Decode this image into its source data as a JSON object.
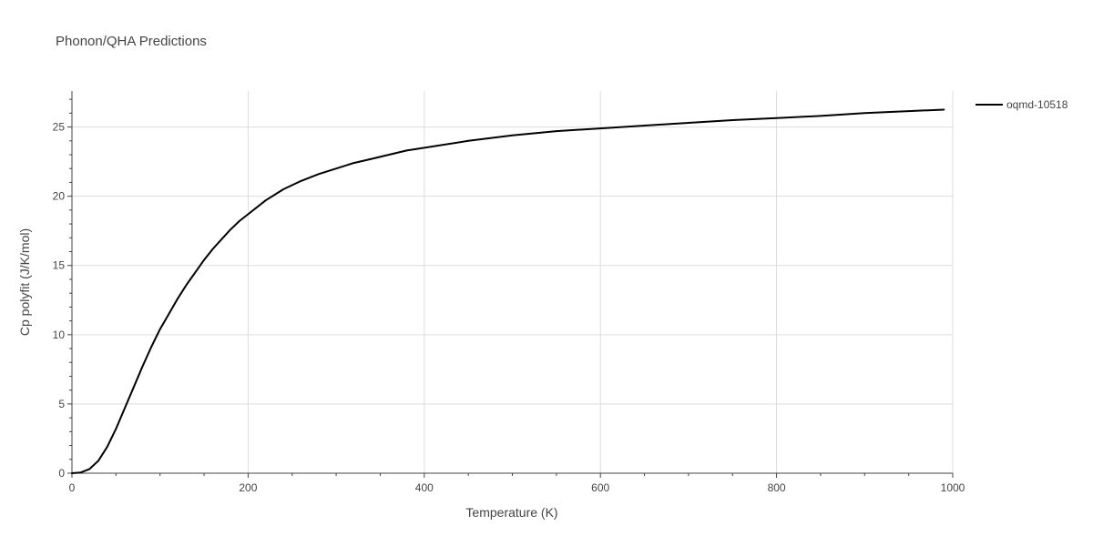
{
  "chart_data": {
    "type": "line",
    "title": "Phonon/QHA Predictions",
    "xlabel": "Temperature (K)",
    "ylabel": "Cp polyfit (J/K/mol)",
    "xlim": [
      0,
      1000
    ],
    "ylim": [
      0,
      27.6
    ],
    "xticks": [
      0,
      200,
      400,
      600,
      800,
      1000
    ],
    "yticks": [
      0,
      5,
      10,
      15,
      20,
      25
    ],
    "grid": true,
    "legend_position": "top-right",
    "series": [
      {
        "name": "oqmd-10518",
        "color": "#000000",
        "x": [
          0,
          10,
          20,
          30,
          40,
          50,
          60,
          70,
          80,
          90,
          100,
          110,
          120,
          130,
          140,
          150,
          160,
          170,
          180,
          190,
          200,
          220,
          240,
          260,
          280,
          300,
          320,
          340,
          360,
          380,
          400,
          450,
          500,
          550,
          600,
          650,
          700,
          750,
          800,
          850,
          900,
          950,
          990
        ],
        "y": [
          0,
          0.05,
          0.3,
          0.9,
          1.9,
          3.2,
          4.7,
          6.2,
          7.7,
          9.1,
          10.4,
          11.5,
          12.6,
          13.6,
          14.5,
          15.4,
          16.2,
          16.9,
          17.6,
          18.2,
          18.7,
          19.7,
          20.5,
          21.1,
          21.6,
          22.0,
          22.4,
          22.7,
          23.0,
          23.3,
          23.5,
          24.0,
          24.4,
          24.7,
          24.9,
          25.1,
          25.3,
          25.5,
          25.65,
          25.8,
          26.0,
          26.15,
          26.25
        ]
      }
    ]
  }
}
